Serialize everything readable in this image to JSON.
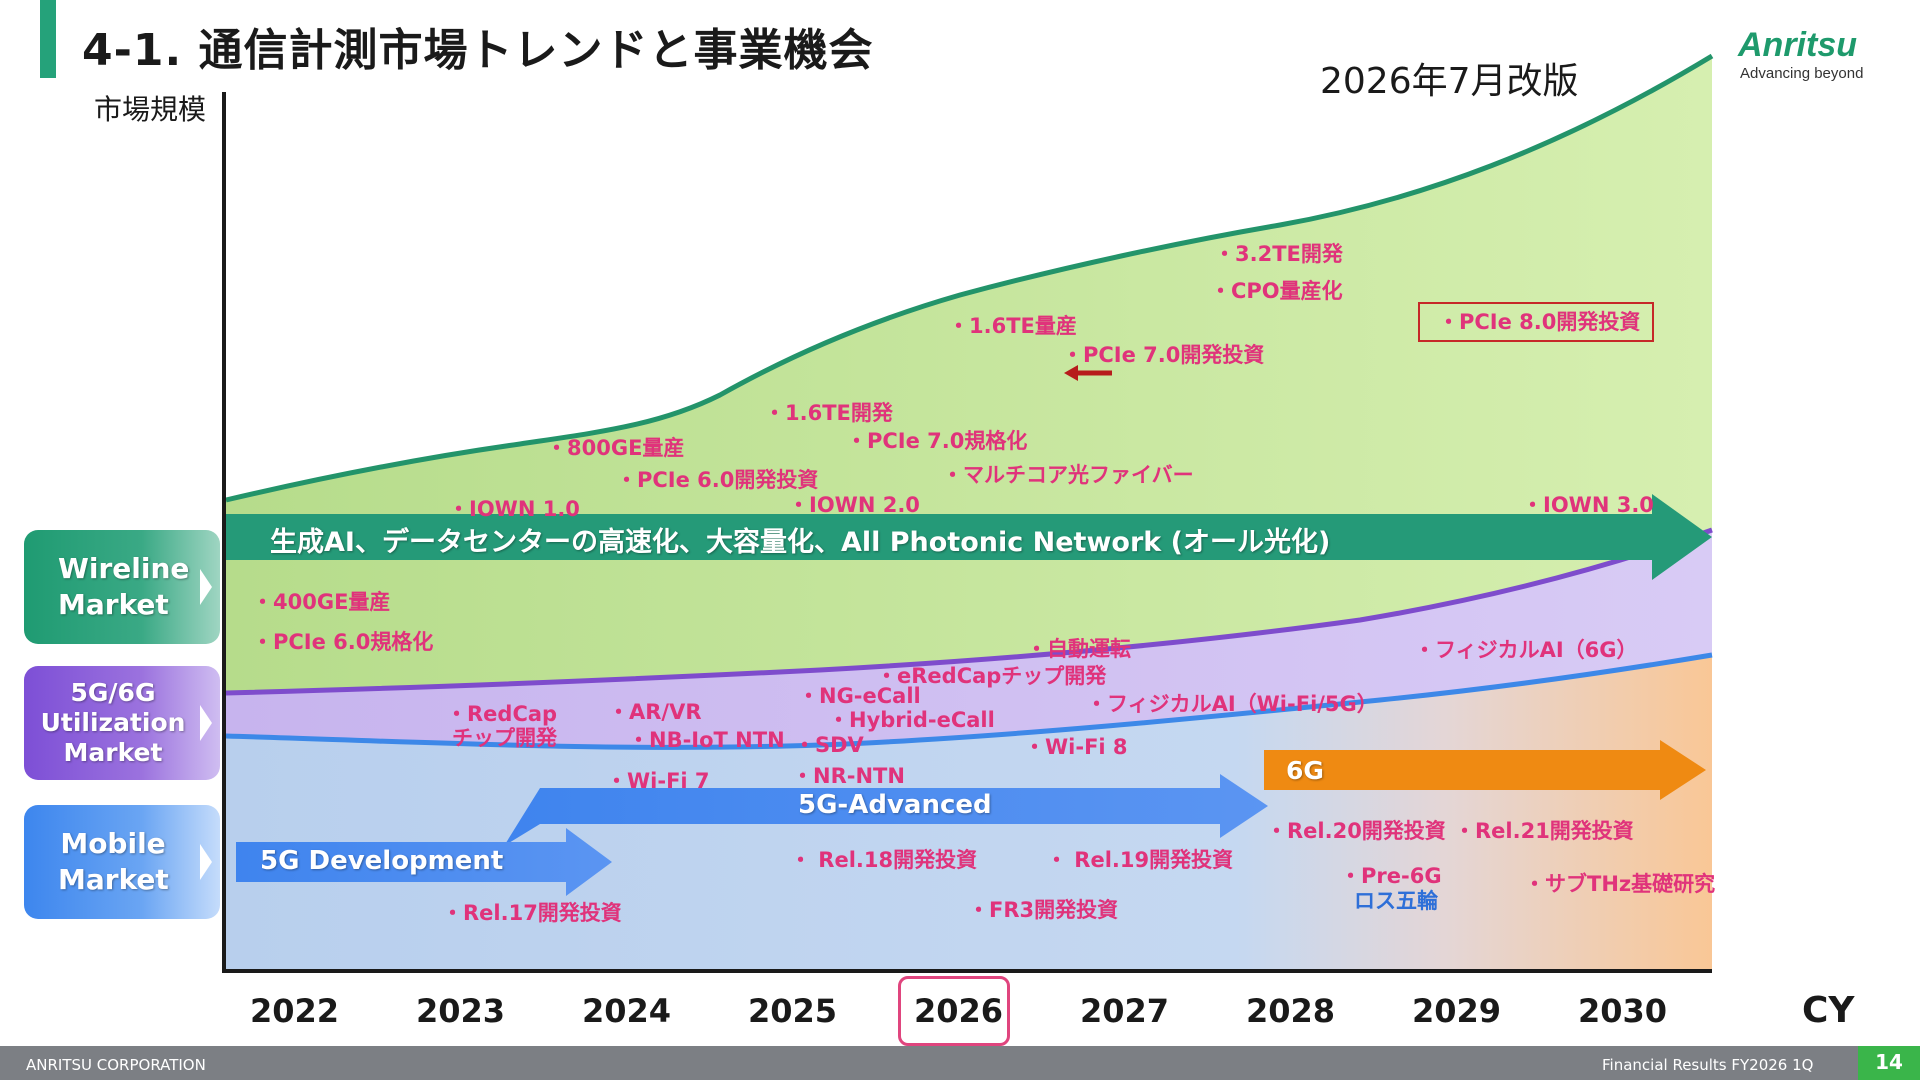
{
  "header": {
    "title": "4-1. 通信計測市場トレンドと事業機会",
    "revision": "2026年7月改版",
    "logo_text": "Anritsu",
    "logo_tagline": "Advancing beyond"
  },
  "chart": {
    "y_label": "市場規模",
    "x_unit": "CY",
    "years": [
      "2022",
      "2023",
      "2024",
      "2025",
      "2026",
      "2027",
      "2028",
      "2029",
      "2030"
    ],
    "highlight_year": "2026"
  },
  "markets": {
    "wireline": "Wireline Market",
    "utilization": "5G/6G Utilization Market",
    "mobile": "Mobile Market"
  },
  "arrows": {
    "wireline_trend": "生成AI、データセンターの高速化、大容量化、All Photonic Network (オール光化)",
    "development": "5G Development",
    "advanced": "5G-Advanced",
    "sixg": "6G"
  },
  "labels": {
    "te32_dev": "・3.2TE開発",
    "cpo": "・CPO量産化",
    "pcie8": "・PCIe 8.0開発投資",
    "te16_mass": "・1.6TE量産",
    "pcie7_inv": "・PCIe 7.0開発投資",
    "te16_dev": "・1.6TE開発",
    "pcie7_std": "・PCIe 7.0規格化",
    "multicore": "・マルチコア光ファイバー",
    "ge800": "・800GE量産",
    "pcie6_inv": "・PCIe 6.0開発投資",
    "iown1": "・IOWN 1.0",
    "iown2": "・IOWN 2.0",
    "iown3": "・IOWN 3.0",
    "ge400": "・400GE量産",
    "pcie6_std": "・PCIe 6.0規格化",
    "autodrive": "・自動運転",
    "eredcap": "・eRedCapチップ開発",
    "ngecall": "・NG-eCall",
    "hybridecall": "・Hybrid-eCall",
    "physical_ai_wifi": "・フィジカルAI（Wi-Fi/5G）",
    "physical_ai_6g": "・フィジカルAI（6G）",
    "redcap_1": "・RedCap",
    "redcap_2": "チップ開発",
    "arvr": "・AR/VR",
    "nbiot": "・NB-IoT NTN",
    "sdv": "・SDV",
    "wifi8": "・Wi-Fi 8",
    "wifi7": "・Wi-Fi 7",
    "nrntn": "・NR-NTN",
    "rel17": "・Rel.17開発投資",
    "rel18": "・ Rel.18開発投資",
    "rel19": "・ Rel.19開発投資",
    "rel20": "・Rel.20開発投資",
    "rel21": "・Rel.21開発投資",
    "fr3": "・FR3開発投資",
    "pre6g": "・Pre-6G",
    "olympics": "ロス五輪",
    "subthz": "・サブTHz基礎研究"
  },
  "footer": {
    "company": "ANRITSU CORPORATION",
    "doc": "Financial Results FY2026 1Q",
    "page": "14"
  },
  "colors": {
    "wireline_area": "#cfe9a4",
    "utilization_area": "#cdbdf0",
    "mobile_area": "#bcd3ef",
    "sixg_area": "#f9c89a",
    "label_pink": "#e0337b",
    "accent_green": "#25a27a"
  }
}
